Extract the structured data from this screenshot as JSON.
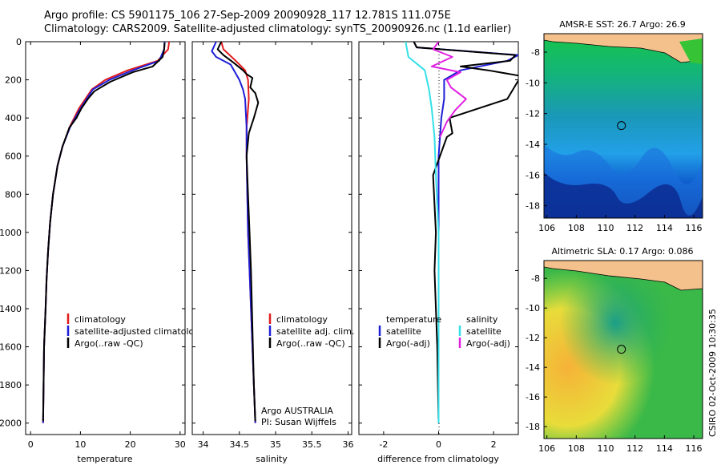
{
  "header": {
    "line1": "Argo profile: CS 5901175_106 27-Sep-2009 20090928_117 12.781S 111.075E",
    "line2": "Climatology: CARS2009. Satellite-adjusted climatology: synTS_20090926.nc (1.1d earlier)"
  },
  "footer": {
    "credit": "CSIRO 02-Oct-2009 10:30:35"
  },
  "colors": {
    "climatology": "#e31a1c",
    "satellite": "#1f1fd8",
    "argo": "#000000",
    "sal_sat": "#33e0e8",
    "sal_argo": "#e020e0"
  },
  "chart_data": [
    {
      "type": "line",
      "title": "",
      "xlabel": "temperature",
      "ylabel": "",
      "xlim": [
        -1,
        31
      ],
      "ylim": [
        2060,
        0
      ],
      "xticks": [
        0,
        10,
        20,
        30
      ],
      "yticks": [
        0,
        200,
        400,
        600,
        800,
        1000,
        1200,
        1400,
        1600,
        1800,
        2000
      ],
      "legend": {
        "position": "lower-right",
        "entries": [
          "climatology",
          "satellite-adjusted climatology",
          "Argo(..raw -QC)"
        ]
      },
      "series": [
        {
          "name": "climatology",
          "color": "#e31a1c",
          "x": [
            27.8,
            27.6,
            25.5,
            19.5,
            15.0,
            12.3,
            9.7,
            7.8,
            6.4,
            5.4,
            4.5,
            3.9,
            3.5,
            3.2,
            3.0,
            2.7,
            2.6,
            2.5
          ],
          "y": [
            0,
            40,
            100,
            150,
            200,
            250,
            350,
            450,
            550,
            650,
            800,
            950,
            1100,
            1250,
            1400,
            1600,
            1800,
            2000
          ]
        },
        {
          "name": "satellite-adjusted climatology",
          "color": "#1f1fd8",
          "x": [
            26.9,
            26.8,
            25.8,
            20.5,
            15.8,
            12.5,
            10.0,
            7.9,
            6.4,
            5.4,
            4.5,
            3.9,
            3.5,
            3.2,
            3.0,
            2.7,
            2.6,
            2.5
          ],
          "y": [
            0,
            40,
            100,
            150,
            200,
            250,
            350,
            450,
            550,
            650,
            800,
            950,
            1100,
            1250,
            1400,
            1600,
            1800,
            2000
          ]
        },
        {
          "name": "Argo(..raw -QC)",
          "color": "#000000",
          "x": [
            26.9,
            26.8,
            26.5,
            24.5,
            20.5,
            16.0,
            12.8,
            11.5,
            10.2,
            9.2,
            7.8,
            6.4,
            5.4,
            4.5,
            3.9,
            3.5,
            3.2,
            3.0,
            2.7,
            2.6,
            2.5
          ],
          "y": [
            5,
            40,
            80,
            130,
            160,
            210,
            260,
            300,
            350,
            400,
            450,
            550,
            650,
            800,
            950,
            1100,
            1250,
            1400,
            1600,
            1800,
            1990
          ]
        }
      ]
    },
    {
      "type": "line",
      "title": "",
      "xlabel": "salinity",
      "ylabel": "",
      "xlim": [
        33.85,
        36.05
      ],
      "ylim": [
        2060,
        0
      ],
      "xticks": [
        34,
        34.5,
        35,
        35.5,
        36
      ],
      "xticklabels": [
        "34",
        "34.5",
        "35",
        "35.5",
        "36"
      ],
      "legend": {
        "position": "lower-right",
        "entries": [
          "climatology",
          "satellite adj. clim.",
          "Argo(..raw -QC)"
        ]
      },
      "annotations": [
        "Argo AUSTRALIA",
        "PI: Susan Wijffels"
      ],
      "series": [
        {
          "name": "climatology",
          "color": "#e31a1c",
          "x": [
            34.25,
            34.28,
            34.45,
            34.58,
            34.62,
            34.63,
            34.6,
            34.6,
            34.61,
            34.62,
            34.64,
            34.66,
            34.68,
            34.7,
            34.72
          ],
          "y": [
            0,
            40,
            100,
            150,
            200,
            300,
            450,
            600,
            800,
            1000,
            1200,
            1400,
            1600,
            1800,
            2000
          ]
        },
        {
          "name": "satellite adj. clim.",
          "color": "#1f1fd8",
          "x": [
            34.18,
            34.12,
            34.18,
            34.38,
            34.5,
            34.55,
            34.58,
            34.6,
            34.6,
            34.61,
            34.62,
            34.64,
            34.66,
            34.68,
            34.7,
            34.72
          ],
          "y": [
            0,
            50,
            80,
            120,
            200,
            250,
            300,
            450,
            600,
            800,
            1000,
            1200,
            1400,
            1600,
            1800,
            2000
          ]
        },
        {
          "name": "Argo(..raw -QC)",
          "color": "#000000",
          "x": [
            34.25,
            34.2,
            34.28,
            34.42,
            34.55,
            34.6,
            34.68,
            34.65,
            34.72,
            34.76,
            34.7,
            34.63,
            34.6,
            34.62,
            34.64,
            34.66,
            34.68,
            34.7,
            34.72
          ],
          "y": [
            0,
            40,
            70,
            110,
            150,
            170,
            190,
            240,
            270,
            320,
            400,
            480,
            600,
            800,
            1000,
            1200,
            1500,
            1800,
            1990
          ]
        }
      ]
    },
    {
      "type": "line",
      "title": "",
      "xlabel": "difference from climatology",
      "ylabel": "",
      "xlim": [
        -2.9,
        2.9
      ],
      "ylim": [
        2060,
        0
      ],
      "xticks": [
        -2,
        0,
        2
      ],
      "legend": {
        "position": "lower-center",
        "groups": [
          {
            "heading": "temperature",
            "entries": [
              "satellite",
              "Argo(-adj)"
            ]
          },
          {
            "heading": "salinity",
            "entries": [
              "satellite",
              "Argo(-adj)"
            ]
          }
        ]
      },
      "series": [
        {
          "name": "temperature satellite",
          "color": "#1f1fd8",
          "x": [
            -0.9,
            -0.8,
            2.9,
            2.5,
            0.8,
            0.2,
            0.2,
            0.1,
            0.0,
            0.0,
            0.0,
            0.0
          ],
          "y": [
            0,
            30,
            70,
            100,
            150,
            200,
            300,
            400,
            600,
            1000,
            1500,
            2000
          ]
        },
        {
          "name": "temperature Argo(-adj)",
          "color": "#000000",
          "x": [
            -0.9,
            -0.8,
            2.8,
            2.6,
            0.8,
            1.8,
            3.0,
            2.5,
            0.4,
            0.5,
            0.3,
            -0.2,
            -0.1,
            -0.15,
            -0.05,
            0.0
          ],
          "y": [
            0,
            30,
            70,
            100,
            130,
            150,
            180,
            300,
            400,
            480,
            500,
            700,
            1000,
            1200,
            1600,
            2000
          ]
        },
        {
          "name": "salinity satellite",
          "color": "#33e0e8",
          "x": [
            -1.2,
            -1.1,
            -0.5,
            -0.35,
            -0.25,
            -0.15,
            -0.1,
            0.0,
            0.0,
            0.0
          ],
          "y": [
            0,
            80,
            150,
            250,
            350,
            500,
            700,
            1000,
            1500,
            2000
          ]
        },
        {
          "name": "salinity Argo(-adj)",
          "color": "#e020e0",
          "x": [
            0.0,
            -0.2,
            0.5,
            -0.25,
            0.8,
            0.3,
            0.45,
            1.0,
            0.6,
            0.3,
            0.05
          ],
          "y": [
            0,
            40,
            80,
            130,
            160,
            200,
            240,
            300,
            360,
            420,
            500
          ]
        }
      ]
    },
    {
      "type": "heatmap",
      "title": "AMSR-E SST: 26.7 Argo: 26.9",
      "xlim": [
        105.8,
        116.6
      ],
      "ylim": [
        -18.8,
        -6.8
      ],
      "xticks": [
        106,
        108,
        110,
        112,
        114,
        116
      ],
      "yticks": [
        -8,
        -10,
        -12,
        -14,
        -16,
        -18
      ],
      "marker": {
        "lon": 111.075,
        "lat": -12.781
      }
    },
    {
      "type": "heatmap",
      "title": "Altimetric SLA: 0.17 Argo: 0.086",
      "xlim": [
        105.8,
        116.6
      ],
      "ylim": [
        -18.8,
        -6.8
      ],
      "xticks": [
        106,
        108,
        110,
        112,
        114,
        116
      ],
      "yticks": [
        -8,
        -10,
        -12,
        -14,
        -16,
        -18
      ],
      "marker": {
        "lon": 111.075,
        "lat": -12.781
      }
    }
  ]
}
